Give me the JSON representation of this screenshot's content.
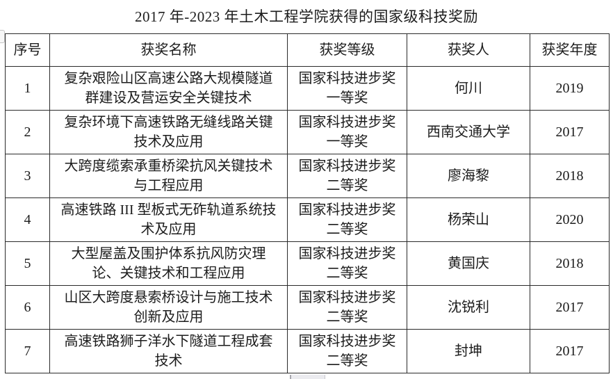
{
  "page": {
    "title": "2017 年-2023 年土木工程学院获得的国家级科技奖励"
  },
  "table": {
    "columns": [
      {
        "key": "index",
        "label": "序号"
      },
      {
        "key": "name",
        "label": "获奖名称"
      },
      {
        "key": "level",
        "label": "获奖等级"
      },
      {
        "key": "recipient",
        "label": "获奖人"
      },
      {
        "key": "year",
        "label": "获奖年度"
      }
    ],
    "rows": [
      {
        "index": "1",
        "name": "复杂艰险山区高速公路大规模隧道群建设及营运安全关键技术",
        "level": "国家科技进步奖一等奖",
        "recipient": "何川",
        "year": "2019"
      },
      {
        "index": "2",
        "name": "复杂环境下高速铁路无缝线路关键技术及应用",
        "level": "国家科技进步奖一等奖",
        "recipient": "西南交通大学",
        "year": "2017"
      },
      {
        "index": "3",
        "name": "大跨度缆索承重桥梁抗风关键技术与工程应用",
        "level": "国家科技进步奖二等奖",
        "recipient": "廖海黎",
        "year": "2018"
      },
      {
        "index": "4",
        "name": "高速铁路 III 型板式无砟轨道系统技术及应用",
        "level": "国家科技进步奖二等奖",
        "recipient": "杨荣山",
        "year": "2020"
      },
      {
        "index": "5",
        "name": "大型屋盖及围护体系抗风防灾理论、关键技术和工程应用",
        "level": "国家科技进步奖二等奖",
        "recipient": "黄国庆",
        "year": "2018"
      },
      {
        "index": "6",
        "name": "山区大跨度悬索桥设计与施工技术创新及应用",
        "level": "国家科技进步奖二等奖",
        "recipient": "沈锐利",
        "year": "2017"
      },
      {
        "index": "7",
        "name": "高速铁路狮子洋水下隧道工程成套技术",
        "level": "国家科技进步奖二等奖",
        "recipient": "封坤",
        "year": "2017"
      }
    ]
  },
  "colors": {
    "background": "#ffffff",
    "border": "#2a2a2a",
    "text": "#1c1c1c"
  }
}
